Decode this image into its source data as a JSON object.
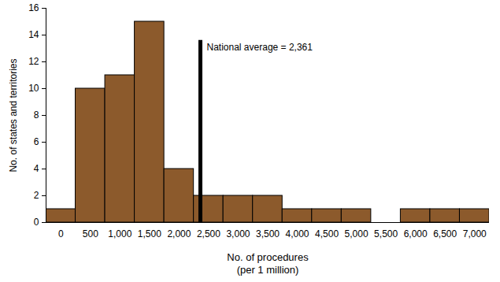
{
  "chart_data": {
    "type": "histogram",
    "bins": [
      -250,
      250,
      750,
      1250,
      1750,
      2250,
      2750,
      3250,
      3750,
      4250,
      4750,
      5250,
      5750,
      6250,
      6750,
      7250
    ],
    "values": [
      1,
      10,
      11,
      15,
      4,
      2,
      2,
      2,
      1,
      1,
      1,
      0,
      1,
      1,
      1
    ],
    "color": "#8c5a2c",
    "xlabel": "No. of procedures\n(per 1 million)",
    "ylabel": "No. of states and territories",
    "xlim": [
      -250,
      7250
    ],
    "ylim": [
      0,
      16
    ],
    "xticks": [
      0,
      500,
      {
        "value": 1000,
        "label": "1,000"
      },
      {
        "value": 1500,
        "label": "1,500"
      },
      {
        "value": 2000,
        "label": "2,000"
      },
      {
        "value": 2500,
        "label": "2,500"
      },
      {
        "value": 3000,
        "label": "3,000"
      },
      {
        "value": 3500,
        "label": "3,500"
      },
      {
        "value": 4000,
        "label": "4,000"
      },
      {
        "value": 4500,
        "label": "4,500"
      },
      {
        "value": 5000,
        "label": "5,000"
      },
      {
        "value": 5500,
        "label": "5,500"
      },
      {
        "value": 6000,
        "label": "6,000"
      },
      {
        "value": 6500,
        "label": "6,500"
      },
      {
        "value": 7000,
        "label": "7,000"
      }
    ],
    "yticks": [
      0,
      2,
      4,
      6,
      8,
      10,
      12,
      14,
      16
    ],
    "annotations": [
      {
        "text": "National average = 2,361",
        "x": 2361,
        "y": 13.6
      }
    ]
  }
}
